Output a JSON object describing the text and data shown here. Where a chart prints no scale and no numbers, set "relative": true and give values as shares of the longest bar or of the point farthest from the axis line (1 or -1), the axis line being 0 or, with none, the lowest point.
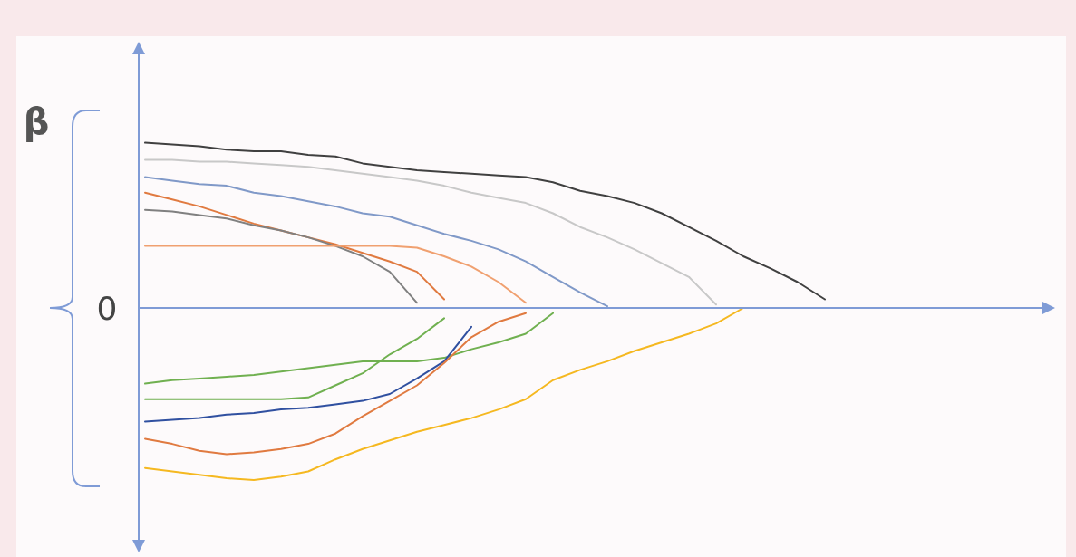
{
  "chart_data": {
    "type": "line",
    "relative": true,
    "ylabel": "β",
    "annotations": [
      "0"
    ],
    "ref_lines": [
      {
        "axis": "y",
        "value": 0,
        "color": "#7f9bd6"
      }
    ],
    "categories": [
      null,
      null,
      null,
      null,
      null,
      null,
      null,
      null,
      null,
      null,
      null,
      null,
      null,
      null,
      null,
      null,
      null,
      null,
      null,
      null,
      null,
      null,
      null,
      null,
      null,
      null,
      null,
      null,
      null,
      null,
      null,
      null,
      null,
      null
    ],
    "series": [
      {
        "color": "#404040",
        "values": [
          0.96,
          0.95,
          0.94,
          0.92,
          0.91,
          0.91,
          0.89,
          0.88,
          0.84,
          0.82,
          0.8,
          0.79,
          0.78,
          0.77,
          0.76,
          0.73,
          0.68,
          0.65,
          0.61,
          0.55,
          0.47,
          0.39,
          0.3,
          0.23,
          0.15,
          0.05,
          null,
          null,
          null,
          null,
          null,
          null,
          null,
          null
        ]
      },
      {
        "color": "#c8c8c8",
        "values": [
          0.86,
          0.86,
          0.85,
          0.85,
          0.84,
          0.83,
          0.82,
          0.8,
          0.78,
          0.76,
          0.74,
          0.71,
          0.67,
          0.64,
          0.61,
          0.55,
          0.47,
          0.41,
          0.34,
          0.26,
          0.18,
          0.02,
          null,
          null,
          null,
          null,
          null,
          null,
          null,
          null,
          null,
          null,
          null,
          null
        ]
      },
      {
        "color": "#8099c8",
        "values": [
          0.76,
          0.74,
          0.72,
          0.71,
          0.67,
          0.65,
          0.62,
          0.59,
          0.55,
          0.53,
          0.48,
          0.43,
          0.39,
          0.34,
          0.27,
          0.18,
          0.09,
          0.01,
          null,
          null,
          null,
          null,
          null,
          null,
          null,
          null,
          null,
          null,
          null,
          null,
          null,
          null,
          null,
          null
        ]
      },
      {
        "color": "#e07a40",
        "values": [
          0.67,
          0.63,
          0.59,
          0.54,
          0.49,
          0.45,
          0.41,
          0.37,
          0.32,
          0.27,
          0.21,
          0.05,
          null,
          null,
          null,
          null,
          null,
          null,
          null,
          null,
          null,
          null,
          null,
          null,
          null,
          null,
          null,
          null,
          null,
          null,
          null,
          null,
          null,
          null
        ]
      },
      {
        "color": "#808080",
        "values": [
          0.57,
          0.56,
          0.54,
          0.52,
          0.48,
          0.45,
          0.41,
          0.36,
          0.3,
          0.21,
          0.03,
          null,
          null,
          null,
          null,
          null,
          null,
          null,
          null,
          null,
          null,
          null,
          null,
          null,
          null,
          null,
          null,
          null,
          null,
          null,
          null,
          null,
          null,
          null
        ]
      },
      {
        "color": "#f0a070",
        "values": [
          0.36,
          0.36,
          0.36,
          0.36,
          0.36,
          0.36,
          0.36,
          0.36,
          0.36,
          0.36,
          0.35,
          0.3,
          0.24,
          0.15,
          0.03,
          null,
          null,
          null,
          null,
          null,
          null,
          null,
          null,
          null,
          null,
          null,
          null,
          null,
          null,
          null,
          null,
          null,
          null,
          null
        ]
      },
      {
        "color": "#70b050",
        "values": [
          -0.44,
          -0.42,
          -0.41,
          -0.4,
          -0.39,
          -0.37,
          -0.35,
          -0.33,
          -0.31,
          -0.31,
          -0.31,
          -0.29,
          -0.24,
          -0.2,
          -0.15,
          -0.03,
          null,
          null,
          null,
          null,
          null,
          null,
          null,
          null,
          null,
          null,
          null,
          null,
          null,
          null,
          null,
          null,
          null,
          null
        ]
      },
      {
        "color": "#70b050",
        "values": [
          -0.53,
          -0.53,
          -0.53,
          -0.53,
          -0.53,
          -0.53,
          -0.52,
          -0.45,
          -0.38,
          -0.27,
          -0.18,
          -0.06,
          null,
          null,
          null,
          null,
          null,
          null,
          null,
          null,
          null,
          null,
          null,
          null,
          null,
          null,
          null,
          null,
          null,
          null,
          null,
          null,
          null,
          null
        ]
      },
      {
        "color": "#3050a0",
        "values": [
          -0.66,
          -0.65,
          -0.64,
          -0.62,
          -0.61,
          -0.59,
          -0.58,
          -0.56,
          -0.54,
          -0.5,
          -0.41,
          -0.31,
          -0.11,
          null,
          null,
          null,
          null,
          null,
          null,
          null,
          null,
          null,
          null,
          null,
          null,
          null,
          null,
          null,
          null,
          null,
          null,
          null,
          null,
          null
        ]
      },
      {
        "color": "#e07a40",
        "values": [
          -0.76,
          -0.79,
          -0.83,
          -0.85,
          -0.84,
          -0.82,
          -0.79,
          -0.73,
          -0.63,
          -0.54,
          -0.45,
          -0.32,
          -0.17,
          -0.08,
          -0.03,
          null,
          null,
          null,
          null,
          null,
          null,
          null,
          null,
          null,
          null,
          null,
          null,
          null,
          null,
          null,
          null,
          null,
          null,
          null
        ]
      },
      {
        "color": "#f5b820",
        "values": [
          -0.93,
          -0.95,
          -0.97,
          -0.99,
          -1,
          -0.98,
          -0.95,
          -0.88,
          -0.82,
          -0.77,
          -0.72,
          -0.68,
          -0.64,
          -0.59,
          -0.53,
          -0.42,
          -0.36,
          -0.31,
          -0.25,
          -0.2,
          -0.15,
          -0.09,
          0,
          null,
          null,
          null,
          null,
          null,
          null,
          null,
          null,
          null,
          null,
          null
        ]
      }
    ]
  }
}
